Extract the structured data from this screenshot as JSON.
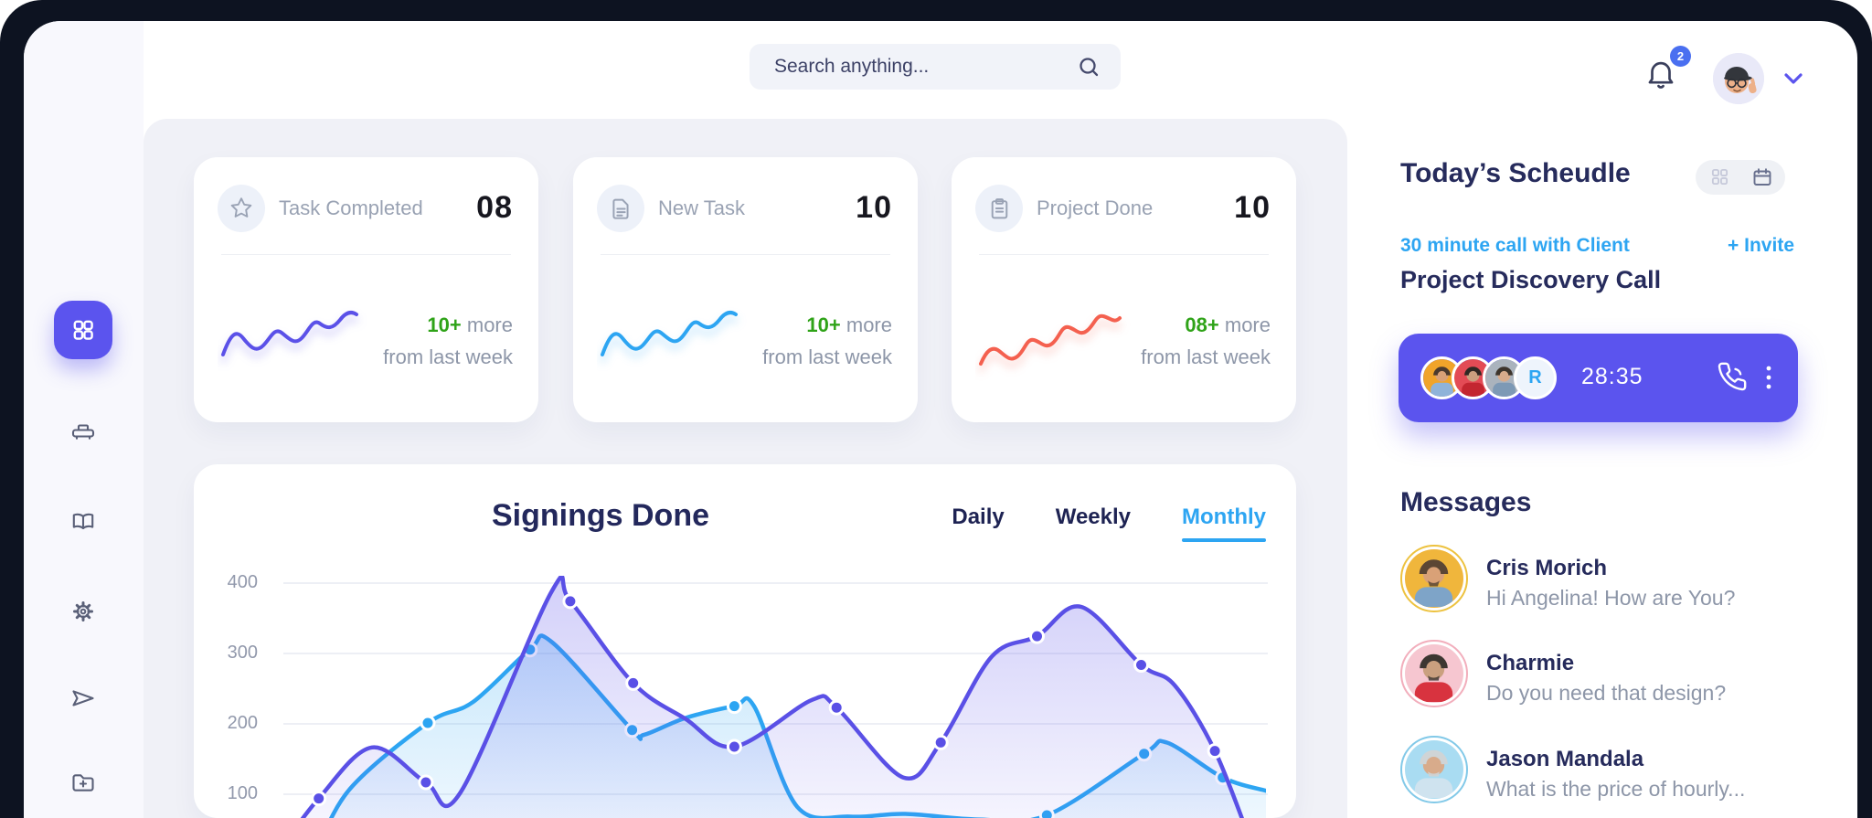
{
  "colors": {
    "accent": "#5b54ee",
    "blue": "#2da5f2",
    "green": "#2fa318",
    "red": "#f4604f",
    "navy": "#262b5c",
    "frame": "#0d1321",
    "main_bg": "#f0f1f7",
    "sidebar_bg": "#f8f8fd"
  },
  "search": {
    "placeholder": "Search anything..."
  },
  "header": {
    "notification_count": "2"
  },
  "sidebar": {
    "items": [
      {
        "icon": "dashboard-grid-icon",
        "active": true
      },
      {
        "icon": "printer-icon"
      },
      {
        "icon": "book-icon"
      },
      {
        "icon": "settings-gear-icon"
      },
      {
        "icon": "send-plane-icon"
      },
      {
        "icon": "folder-add-icon"
      }
    ]
  },
  "stat_cards": [
    {
      "icon": "star-icon",
      "label": "Task Completed",
      "value": "08",
      "delta": "10+",
      "delta_rest": " more",
      "sub": "from last week",
      "line_color": "#5b51e8"
    },
    {
      "icon": "document-icon",
      "label": "New Task",
      "value": "10",
      "delta": "10+",
      "delta_rest": " more",
      "sub": "from last week",
      "line_color": "#2da5f2"
    },
    {
      "icon": "clipboard-icon",
      "label": "Project Done",
      "value": "10",
      "delta": "08+",
      "delta_rest": " more",
      "sub": "from last week",
      "line_color": "#f4604f"
    }
  ],
  "chart": {
    "title": "Signings Done",
    "tabs": [
      "Daily",
      "Weekly",
      "Monthly"
    ],
    "active_tab": "Monthly"
  },
  "chart_data": {
    "type": "line",
    "title": "Signings Done",
    "ylim": [
      0,
      400
    ],
    "yticks": [
      400,
      300,
      200,
      100
    ],
    "grid": true,
    "x_unit": "percent-of-plot-width",
    "series": [
      {
        "name": "signings-blue",
        "color": "#2da5f2",
        "points": [
          [
            3.3,
            15
          ],
          [
            6.8,
            106
          ],
          [
            14.7,
            200
          ],
          [
            19.3,
            230
          ],
          [
            25.1,
            305
          ],
          [
            27.3,
            316
          ],
          [
            35.5,
            190
          ],
          [
            36.7,
            183
          ],
          [
            40.9,
            207
          ],
          [
            45.9,
            224
          ],
          [
            47.9,
            224
          ],
          [
            52.3,
            80
          ],
          [
            57.7,
            66
          ],
          [
            63.3,
            70
          ],
          [
            70.7,
            62
          ],
          [
            77.7,
            68
          ],
          [
            87.6,
            156
          ],
          [
            89.9,
            172
          ],
          [
            95.6,
            122
          ],
          [
            100,
            103
          ]
        ],
        "dot_points": [
          [
            14.7,
            200
          ],
          [
            25.1,
            305
          ],
          [
            35.5,
            190
          ],
          [
            45.9,
            224
          ],
          [
            77.7,
            68
          ],
          [
            87.6,
            156
          ],
          [
            95.6,
            122
          ]
        ]
      },
      {
        "name": "signings-purple",
        "color": "#5a50e6",
        "points": [
          [
            0,
            25
          ],
          [
            3.6,
            92
          ],
          [
            9,
            165
          ],
          [
            14.5,
            115
          ],
          [
            18,
            100
          ],
          [
            27.3,
            388
          ],
          [
            29.2,
            374
          ],
          [
            35.6,
            257
          ],
          [
            40.9,
            206
          ],
          [
            45.9,
            166
          ],
          [
            53.8,
            233
          ],
          [
            56.3,
            222
          ],
          [
            63.1,
            122
          ],
          [
            66.9,
            172
          ],
          [
            72.1,
            295
          ],
          [
            76.7,
            324
          ],
          [
            81.2,
            366
          ],
          [
            87.3,
            283
          ],
          [
            90.7,
            254
          ],
          [
            94.8,
            160
          ],
          [
            98.5,
            28
          ]
        ],
        "dot_points": [
          [
            3.6,
            92
          ],
          [
            14.5,
            115
          ],
          [
            29.2,
            374
          ],
          [
            35.6,
            257
          ],
          [
            45.9,
            166
          ],
          [
            56.3,
            222
          ],
          [
            66.9,
            172
          ],
          [
            76.7,
            324
          ],
          [
            87.3,
            283
          ],
          [
            94.8,
            160
          ]
        ]
      }
    ]
  },
  "schedule": {
    "title": "Today’s Scheudle",
    "event_label": "30 minute call with Client",
    "invite_label": "+ Invite",
    "event_title": "Project Discovery Call",
    "call": {
      "timer": "28:35",
      "remote_initial": "R",
      "participant_count": 3
    }
  },
  "messages": {
    "title": "Messages",
    "items": [
      {
        "name": "Cris Morich",
        "preview": "Hi Angelina! How are You?",
        "ring": "#edc23f",
        "photo_bg": "#f0b63c"
      },
      {
        "name": "Charmie",
        "preview": "Do you need that design?",
        "ring": "#f2aebc",
        "photo_bg": "#f6c6d0"
      },
      {
        "name": "Jason Mandala",
        "preview": "What is the price of hourly...",
        "ring": "#82c9e8",
        "photo_bg": "#a9dcf2"
      }
    ]
  }
}
